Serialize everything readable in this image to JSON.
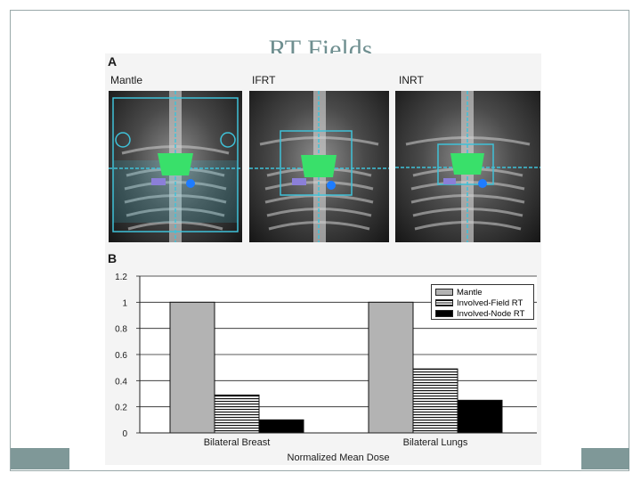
{
  "slide": {
    "title": "RT Fields",
    "accent_color": "#7f9898",
    "title_color": "#6f8f90"
  },
  "panel_a": {
    "letter": "A",
    "images": [
      {
        "label": "Mantle"
      },
      {
        "label": "IFRT"
      },
      {
        "label": "INRT"
      }
    ]
  },
  "panel_b": {
    "letter": "B"
  },
  "chart_data": {
    "type": "bar",
    "xlabel": "Normalized Mean Dose",
    "ylabel": "",
    "ylim": [
      0,
      1.2
    ],
    "yticks": [
      "0",
      "0.2",
      "0.4",
      "0.6",
      "0.8",
      "1",
      "1.2"
    ],
    "grid": true,
    "legend_position": "top-right",
    "categories": [
      "Bilateral Breast",
      "Bilateral Lungs"
    ],
    "series": [
      {
        "name": "Mantle",
        "values": [
          1.0,
          1.0
        ],
        "color": "#b3b3b3",
        "pattern": "solid"
      },
      {
        "name": "Involved-Field RT",
        "values": [
          0.29,
          0.49
        ],
        "color": "#ffffff",
        "pattern": "horizontal-stripes"
      },
      {
        "name": "Involved-Node RT",
        "values": [
          0.1,
          0.25
        ],
        "color": "#000000",
        "pattern": "solid"
      }
    ]
  }
}
